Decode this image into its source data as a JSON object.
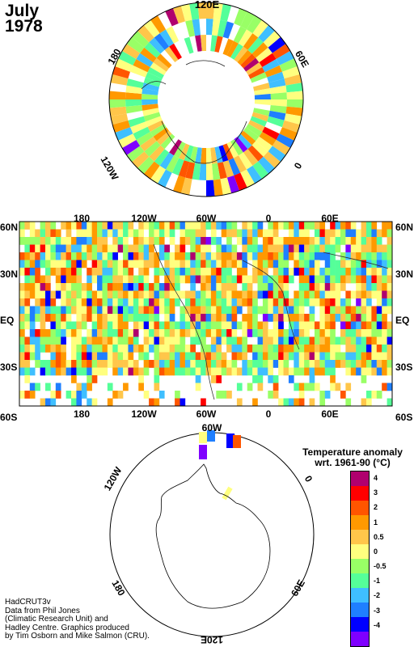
{
  "title": {
    "line1": "July",
    "line2": "1978"
  },
  "north_polar": {
    "labels": {
      "top": "120E",
      "right": "60E",
      "bottom": "0",
      "left": "120W",
      "upper_left": "180"
    }
  },
  "equirect": {
    "top_ticks": [
      "180",
      "120W",
      "60W",
      "0",
      "60E"
    ],
    "bottom_ticks": [
      "180",
      "120W",
      "60W",
      "0",
      "60E"
    ],
    "left_lats": [
      "60N",
      "30N",
      "EQ",
      "30S",
      "60S"
    ],
    "right_lats": [
      "60N",
      "30N",
      "EQ",
      "30S",
      "60S"
    ]
  },
  "south_polar": {
    "labels": {
      "top": "60W",
      "upper_left": "120W",
      "right": "0",
      "lower_left": "180",
      "lower_right": "60E",
      "bottom": "120E"
    }
  },
  "legend": {
    "title_line1": "Temperature anomaly",
    "title_line2": "wrt. 1961-90  (°C)",
    "bins": [
      {
        "label": "4",
        "color": "#b0006e"
      },
      {
        "label": "3",
        "color": "#ff0000"
      },
      {
        "label": "2",
        "color": "#ff5500"
      },
      {
        "label": "1",
        "color": "#ff9900"
      },
      {
        "label": "0.5",
        "color": "#ffc64a"
      },
      {
        "label": "0",
        "color": "#ffff7f"
      },
      {
        "label": "-0.5",
        "color": "#99ff66"
      },
      {
        "label": "-1",
        "color": "#55ff99"
      },
      {
        "label": "-2",
        "color": "#3fbfff"
      },
      {
        "label": "-3",
        "color": "#1f7fff"
      },
      {
        "label": "-4",
        "color": "#0000ff"
      },
      {
        "label": "",
        "color": "#7f00ff"
      }
    ]
  },
  "credits": [
    "HadCRUT3v",
    "Data from Phil Jones",
    "(Climatic Research Unit) and",
    "Hadley Centre.  Graphics produced",
    "by Tim Osborn and Mike Salmon (CRU)."
  ]
}
